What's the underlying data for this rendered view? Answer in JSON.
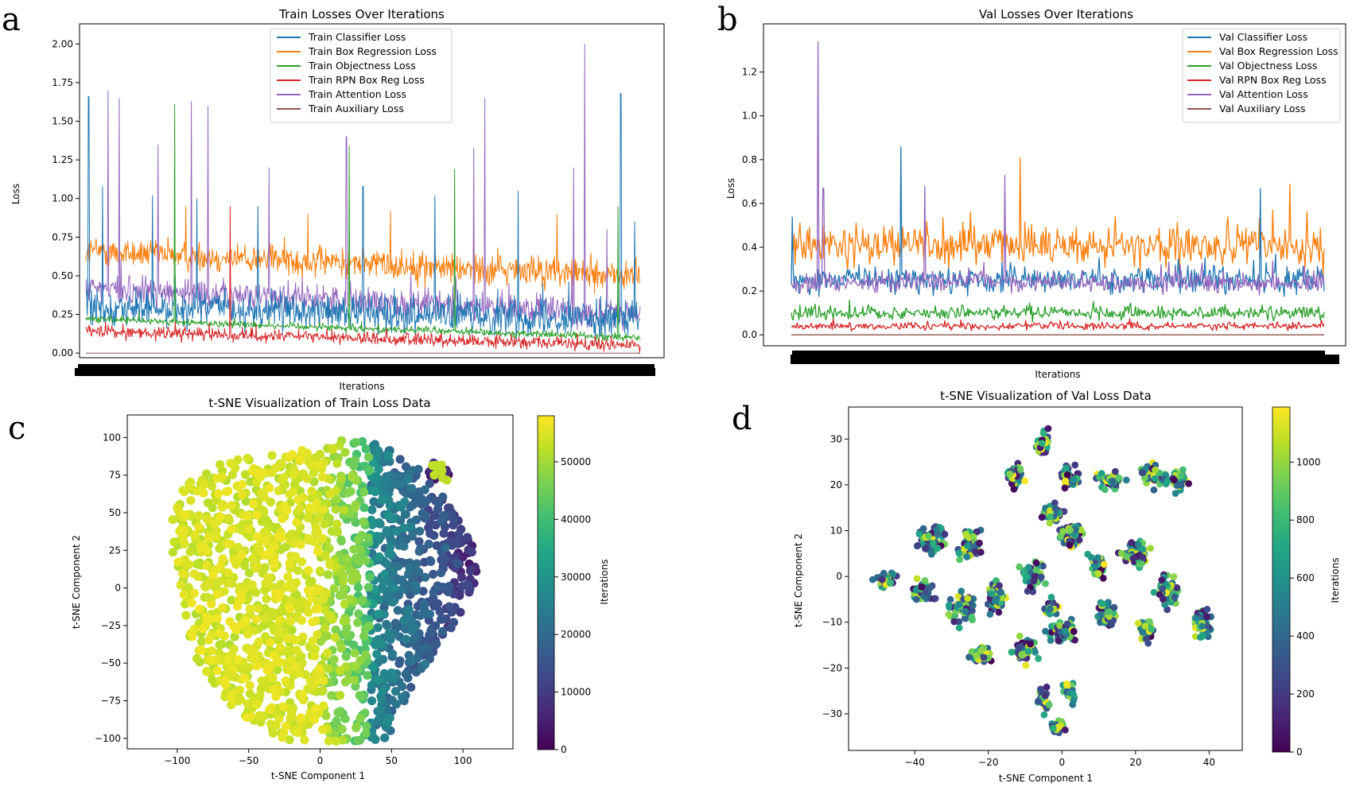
{
  "figure": {
    "panel_letters": [
      "a",
      "b",
      "c",
      "d"
    ]
  },
  "chart_data": [
    {
      "panel": "a",
      "type": "line",
      "title": "Train Losses Over Iterations",
      "xlabel": "Iterations",
      "ylabel": "Loss",
      "ylim": [
        -0.03,
        2.13
      ],
      "yticks": [
        "0.00",
        "0.25",
        "0.50",
        "0.75",
        "1.00",
        "1.25",
        "1.50",
        "1.75",
        "2.00"
      ],
      "legend_position": "upper-center",
      "series": [
        {
          "name": "Train Classifier Loss",
          "color": "#1f77b4",
          "baseline_start": 0.3,
          "baseline_end": 0.22,
          "noise": 0.14,
          "spikes": [
            [
              0.005,
              1.66
            ],
            [
              0.03,
              1.08
            ],
            [
              0.12,
              1.02
            ],
            [
              0.2,
              1.0
            ],
            [
              0.31,
              0.95
            ],
            [
              0.5,
              1.08
            ],
            [
              0.63,
              1.02
            ],
            [
              0.78,
              1.05
            ],
            [
              0.965,
              1.68
            ],
            [
              0.99,
              0.85
            ]
          ]
        },
        {
          "name": "Train Box Regression Loss",
          "color": "#ff7f0e",
          "baseline_start": 0.66,
          "baseline_end": 0.5,
          "noise": 0.12,
          "spikes": [
            [
              0.18,
              0.95
            ],
            [
              0.4,
              0.9
            ],
            [
              0.55,
              0.92
            ],
            [
              0.7,
              0.88
            ],
            [
              0.85,
              0.9
            ]
          ]
        },
        {
          "name": "Train Objectness Loss",
          "color": "#2ca02c",
          "baseline_start": 0.22,
          "baseline_end": 0.1,
          "noise": 0.03,
          "spikes": [
            [
              0.16,
              1.61
            ],
            [
              0.475,
              1.34
            ],
            [
              0.665,
              1.19
            ],
            [
              0.96,
              0.95
            ]
          ]
        },
        {
          "name": "Train RPN Box Reg Loss",
          "color": "#d62728",
          "baseline_start": 0.14,
          "baseline_end": 0.05,
          "noise": 0.05,
          "spikes": [
            [
              0.26,
              0.95
            ]
          ]
        },
        {
          "name": "Train Attention Loss",
          "color": "#9467bd",
          "baseline_start": 0.42,
          "baseline_end": 0.25,
          "noise": 0.12,
          "spikes": [
            [
              0.04,
              1.7
            ],
            [
              0.06,
              1.65
            ],
            [
              0.13,
              1.35
            ],
            [
              0.19,
              1.63
            ],
            [
              0.22,
              1.6
            ],
            [
              0.33,
              1.2
            ],
            [
              0.47,
              1.4
            ],
            [
              0.7,
              1.33
            ],
            [
              0.72,
              1.65
            ],
            [
              0.88,
              1.2
            ],
            [
              0.9,
              2.0
            ],
            [
              0.94,
              0.8
            ]
          ]
        },
        {
          "name": "Train Auxiliary Loss",
          "color": "#8c564b",
          "baseline_start": 0.0,
          "baseline_end": 0.0,
          "noise": 0.0,
          "spikes": []
        }
      ]
    },
    {
      "panel": "b",
      "type": "line",
      "title": "Val Losses Over Iterations",
      "xlabel": "Iterations",
      "ylabel": "Loss",
      "ylim": [
        -0.05,
        1.42
      ],
      "yticks": [
        "0.0",
        "0.2",
        "0.4",
        "0.6",
        "0.8",
        "1.0",
        "1.2"
      ],
      "legend_position": "upper-right",
      "series": [
        {
          "name": "Val Classifier Loss",
          "color": "#1f77b4",
          "baseline_start": 0.25,
          "baseline_end": 0.25,
          "noise": 0.08,
          "spikes": [
            [
              0.002,
              0.54
            ],
            [
              0.205,
              0.86
            ],
            [
              0.88,
              0.67
            ]
          ]
        },
        {
          "name": "Val Box Regression Loss",
          "color": "#ff7f0e",
          "baseline_start": 0.42,
          "baseline_end": 0.4,
          "noise": 0.11,
          "spikes": [
            [
              0.43,
              0.81
            ],
            [
              0.935,
              0.69
            ]
          ]
        },
        {
          "name": "Val Objectness Loss",
          "color": "#2ca02c",
          "baseline_start": 0.1,
          "baseline_end": 0.1,
          "noise": 0.04,
          "spikes": []
        },
        {
          "name": "Val RPN Box Reg Loss",
          "color": "#d62728",
          "baseline_start": 0.04,
          "baseline_end": 0.04,
          "noise": 0.02,
          "spikes": []
        },
        {
          "name": "Val Attention Loss",
          "color": "#9467bd",
          "baseline_start": 0.24,
          "baseline_end": 0.24,
          "noise": 0.06,
          "spikes": [
            [
              0.05,
              1.34
            ],
            [
              0.06,
              0.67
            ],
            [
              0.25,
              0.68
            ],
            [
              0.4,
              0.73
            ]
          ]
        },
        {
          "name": "Val Auxiliary Loss",
          "color": "#8c564b",
          "baseline_start": 0.0,
          "baseline_end": 0.0,
          "noise": 0.0,
          "spikes": []
        }
      ]
    },
    {
      "panel": "c",
      "type": "scatter",
      "title": "t-SNE Visualization of Train Loss Data",
      "xlabel": "t-SNE Component 1",
      "ylabel": "t-SNE Component 2",
      "xlim": [
        -135,
        135
      ],
      "ylim": [
        -107,
        115
      ],
      "xticks": [
        -100,
        -50,
        0,
        50,
        100
      ],
      "yticks": [
        -100,
        -75,
        -50,
        -25,
        0,
        25,
        50,
        75,
        100
      ],
      "xticklabels": [
        "−100",
        "−50",
        "0",
        "50",
        "100"
      ],
      "yticklabels": [
        "−100",
        "−75",
        "−50",
        "−25",
        "0",
        "25",
        "50",
        "75",
        "100"
      ],
      "colorbar": {
        "label": "Iterations",
        "range": [
          0,
          58000
        ],
        "ticks": [
          0,
          10000,
          20000,
          30000,
          40000,
          50000
        ],
        "ticklabels": [
          "0",
          "10000",
          "20000",
          "30000",
          "40000",
          "50000"
        ]
      },
      "point_count": 1700
    },
    {
      "panel": "d",
      "type": "scatter",
      "title": "t-SNE Visualization of Val Loss Data",
      "xlabel": "t-SNE Component 1",
      "ylabel": "t-SNE Component 2",
      "xlim": [
        -58,
        49
      ],
      "ylim": [
        -38,
        37
      ],
      "xticks": [
        -40,
        -20,
        0,
        20,
        40
      ],
      "yticks": [
        -30,
        -20,
        -10,
        0,
        10,
        20,
        30
      ],
      "xticklabels": [
        "−40",
        "−20",
        "0",
        "20",
        "40"
      ],
      "yticklabels": [
        "−30",
        "−20",
        "−10",
        "0",
        "10",
        "20",
        "30"
      ],
      "colorbar": {
        "label": "Iterations",
        "range": [
          0,
          1190
        ],
        "ticks": [
          0,
          200,
          400,
          600,
          800,
          1000
        ],
        "ticklabels": [
          "0",
          "200",
          "400",
          "600",
          "800",
          "1000"
        ]
      },
      "point_count": 1190
    }
  ]
}
